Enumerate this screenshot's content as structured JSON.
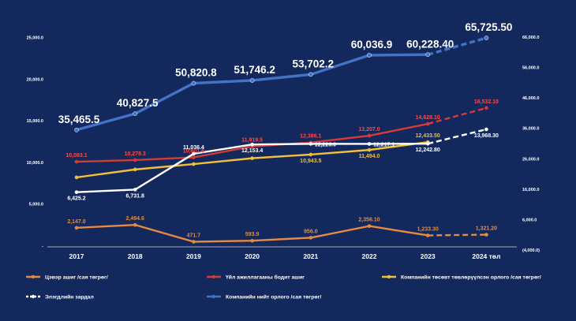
{
  "chart_data": {
    "type": "line",
    "categories": [
      "2017",
      "2018",
      "2019",
      "2020",
      "2021",
      "2022",
      "2023",
      "2024 төл"
    ],
    "left_axis": {
      "ylim": [
        0,
        25000
      ],
      "ticks": [
        "",
        "5,000.0",
        "10,000.0",
        "15,000.0",
        "20,000.0",
        "25,000.0"
      ]
    },
    "right_axis": {
      "ylim": [
        -4000,
        66000
      ],
      "ticks": [
        "(4,000.0)",
        "6,000.0",
        "16,000.0",
        "26,000.0",
        "36,000.0",
        "46,000.0",
        "56,000.0",
        "66,000.0"
      ]
    },
    "series": [
      {
        "name": "Цэвэр ашиг /сая төгрөг/",
        "axis": "left",
        "color": "#e58a41",
        "dashed_last": true,
        "values": [
          2147.0,
          2494.6,
          471.7,
          593.9,
          956.0,
          2356.1,
          1233.3,
          1321.2
        ],
        "labels": [
          "2,147.0",
          "2,494.6",
          "471.7",
          "593.9",
          "956.0",
          "2,356.10",
          "1,233.30",
          "1,321.20"
        ],
        "label_pos": [
          "above",
          "above",
          "above",
          "above",
          "above",
          "above",
          "above",
          "above"
        ],
        "label_color": "#e58a41"
      },
      {
        "name": "Үйл ажиллагааны бодит ашиг",
        "axis": "left",
        "color": "#d63a35",
        "dashed_last": true,
        "values": [
          10083.1,
          10278.3,
          10601.6,
          11919.5,
          12386.1,
          13207.0,
          14628.1,
          16532.1
        ],
        "labels": [
          "10,083.1",
          "10,278.3",
          "10,601.6",
          "11,919.5",
          "12,386.1",
          "13,207.0",
          "14,628.10",
          "16,532.10"
        ],
        "label_pos": [
          "above",
          "above",
          "above",
          "above",
          "above",
          "above",
          "above",
          "above"
        ],
        "label_color": "#ff4b45"
      },
      {
        "name": "Компанийн төсөвт төвлөрүүлсэн орлого /сая төгрөг/",
        "axis": "left",
        "color": "#f2bf3a",
        "dashed_last": false,
        "values": [
          8200,
          9150,
          9800,
          10500,
          10943.5,
          11494.0,
          12433.5,
          null
        ],
        "labels": [
          "",
          "",
          "",
          "",
          "10,943.5",
          "11,494.0",
          "12,433.50",
          ""
        ],
        "label_pos": [
          "below",
          "below",
          "below",
          "below",
          "below",
          "below",
          "above",
          "below"
        ],
        "label_color": "#f2bf3a"
      },
      {
        "name": "Элэгдлийн зардал",
        "axis": "left",
        "color": "#ffffff",
        "dashed_last": true,
        "values": [
          6425.2,
          6731.8,
          11036.4,
          12153.4,
          12228.0,
          12217.1,
          12242.8,
          13968.3
        ],
        "labels": [
          "6,425.2",
          "6,731.8",
          "11,036.4",
          "12,153.4",
          "12,228.0",
          "12,217.1",
          "12,242.80",
          "13,968.30"
        ],
        "label_pos": [
          "below",
          "below",
          "above",
          "below",
          "right",
          "right",
          "below",
          "below"
        ],
        "label_color": "#ffffff"
      },
      {
        "name": "Компанийн нийт орлого /сая төгрөг/",
        "axis": "right",
        "color": "#4472c4",
        "dashed_last": true,
        "values": [
          35465.5,
          40827.5,
          50820.8,
          51746.2,
          53702.2,
          60036.9,
          60228.4,
          65725.5
        ],
        "labels": [
          "35,465.5",
          "40,827.5",
          "50,820.8",
          "51,746.2",
          "53,702.2",
          "60,036.9",
          "60,228.40",
          "65,725.50"
        ],
        "label_pos": [
          "above",
          "above",
          "above",
          "above",
          "above",
          "above",
          "above",
          "above"
        ],
        "label_color": "#ffffff"
      }
    ],
    "legend_position": "bottom",
    "grid": false
  }
}
